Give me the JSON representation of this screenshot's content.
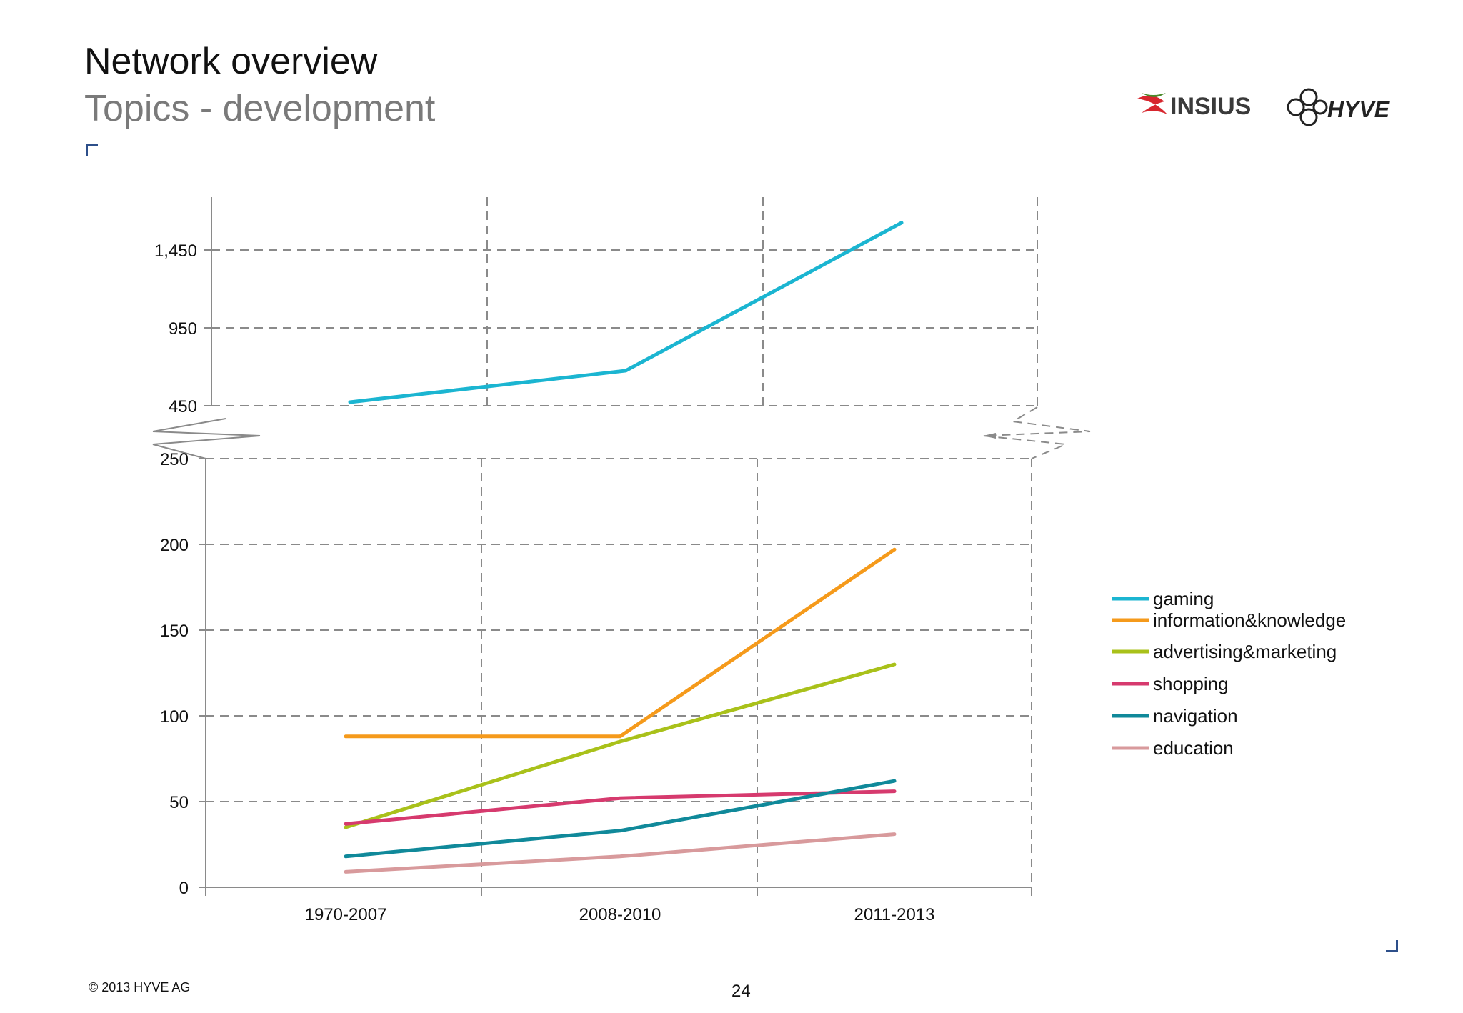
{
  "header": {
    "title": "Network overview",
    "subtitle": "Topics - development"
  },
  "logos": {
    "insius_text": "INSIUS",
    "hyve_text": "HYVE",
    "insius_accent": "#d7262e",
    "insius_green": "#4b8a2b",
    "insius_text_color": "#3a3a3a"
  },
  "footer": {
    "copyright": "© 2013 HYVE AG",
    "page_number": "24"
  },
  "chart_data": {
    "type": "line",
    "categories": [
      "1970-2007",
      "2008-2010",
      "2011-2013"
    ],
    "axis_break": true,
    "upper_yticks": [
      "450",
      "950",
      "1,450"
    ],
    "upper_ytick_values": [
      450,
      950,
      1450
    ],
    "upper_ylim": [
      450,
      1650
    ],
    "lower_yticks": [
      "0",
      "50",
      "100",
      "150",
      "200",
      "250"
    ],
    "lower_ytick_values": [
      0,
      50,
      100,
      150,
      200,
      250
    ],
    "lower_ylim": [
      0,
      250
    ],
    "grid": true,
    "legend_position": "right",
    "series": [
      {
        "name": "gaming",
        "color": "#1bb5d1",
        "values": [
          473,
          675,
          1625
        ]
      },
      {
        "name": "information&knowledge",
        "color": "#f59a1b",
        "values": [
          88,
          88,
          197
        ]
      },
      {
        "name": "advertising&marketing",
        "color": "#a9c11a",
        "values": [
          35,
          85,
          130
        ]
      },
      {
        "name": "shopping",
        "color": "#d63a6e",
        "values": [
          37,
          52,
          56
        ]
      },
      {
        "name": "navigation",
        "color": "#10899a",
        "values": [
          18,
          33,
          62
        ]
      },
      {
        "name": "education",
        "color": "#d89a9c",
        "values": [
          9,
          18,
          31
        ]
      }
    ]
  }
}
